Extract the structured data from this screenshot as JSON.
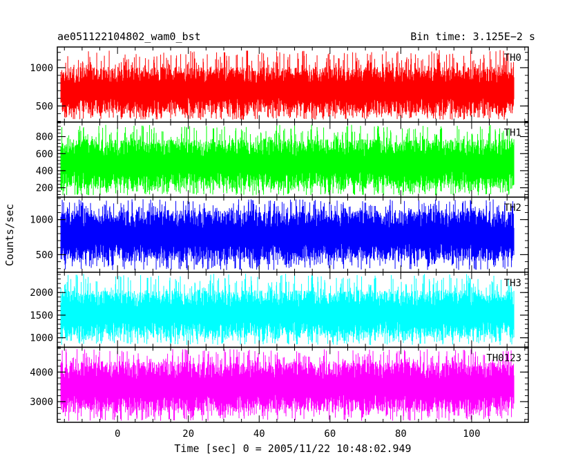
{
  "chart_data": {
    "type": "line",
    "title_left": "ae051122104802_wam0_bst",
    "title_right": "Bin time: 3.125E−2 s",
    "xlabel": "Time [sec] 0 = 2005/11/22 10:48:02.949",
    "ylabel": "Counts/sec",
    "xlim": [
      -17,
      116
    ],
    "data_xrange": [
      -16,
      112
    ],
    "x_ticks": [
      0,
      20,
      40,
      60,
      80,
      100
    ],
    "x_tick_labels": [
      "0",
      "20",
      "40",
      "60",
      "80",
      "100"
    ],
    "grid": false,
    "panels": [
      {
        "name": "TH0",
        "color": "#ff0000",
        "ylim": [
          290,
          1270
        ],
        "y_ticks": [
          500,
          1000
        ],
        "y_tick_labels": [
          "500",
          "1000"
        ],
        "typical": [
          400,
          1010
        ],
        "spikes": [
          320,
          1230
        ]
      },
      {
        "name": "TH1",
        "color": "#00ff00",
        "ylim": [
          90,
          970
        ],
        "y_ticks": [
          200,
          400,
          600,
          800
        ],
        "y_tick_labels": [
          "200",
          "400",
          "600",
          "800"
        ],
        "typical": [
          190,
          770
        ],
        "spikes": [
          110,
          940
        ]
      },
      {
        "name": "TH2",
        "color": "#0000ff",
        "ylim": [
          250,
          1320
        ],
        "y_ticks": [
          500,
          1000
        ],
        "y_tick_labels": [
          "500",
          "1000"
        ],
        "typical": [
          410,
          1130
        ],
        "spikes": [
          280,
          1290
        ]
      },
      {
        "name": "TH3",
        "color": "#00ffff",
        "ylim": [
          790,
          2450
        ],
        "y_ticks": [
          1000,
          1500,
          2000
        ],
        "y_tick_labels": [
          "1000",
          "1500",
          "2000"
        ],
        "typical": [
          1000,
          2050
        ],
        "spikes": [
          840,
          2420
        ]
      },
      {
        "name": "TH0123",
        "color": "#ff00ff",
        "ylim": [
          2300,
          4840
        ],
        "y_ticks": [
          3000,
          4000
        ],
        "y_tick_labels": [
          "3000",
          "4000"
        ],
        "typical": [
          2650,
          4350
        ],
        "spikes": [
          2350,
          4780
        ]
      }
    ]
  }
}
